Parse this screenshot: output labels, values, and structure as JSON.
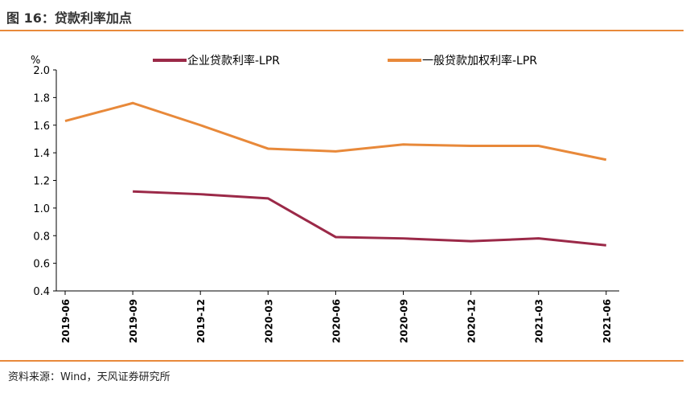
{
  "title": "图 16：贷款利率加点",
  "source": "资料来源：Wind，天风证券研究所",
  "chart_data": {
    "type": "line",
    "ylabel": "%",
    "ylim": [
      0.4,
      2.0
    ],
    "yticks": [
      "2.0",
      "1.8",
      "1.6",
      "1.4",
      "1.2",
      "1.0",
      "0.8",
      "0.6",
      "0.4"
    ],
    "categories": [
      "2019-06",
      "2019-09",
      "2019-12",
      "2020-03",
      "2020-06",
      "2020-09",
      "2020-12",
      "2021-03",
      "2021-06"
    ],
    "legend": "top",
    "grid": false,
    "series": [
      {
        "name": "企业贷款利率-LPR",
        "color": "#9b2948",
        "values": [
          null,
          1.12,
          1.1,
          1.07,
          0.79,
          0.78,
          0.76,
          0.78,
          0.73
        ]
      },
      {
        "name": "一般贷款加权利率-LPR",
        "color": "#e8893a",
        "values": [
          1.63,
          1.76,
          1.6,
          1.43,
          1.41,
          1.46,
          1.45,
          1.45,
          1.35
        ]
      }
    ]
  }
}
